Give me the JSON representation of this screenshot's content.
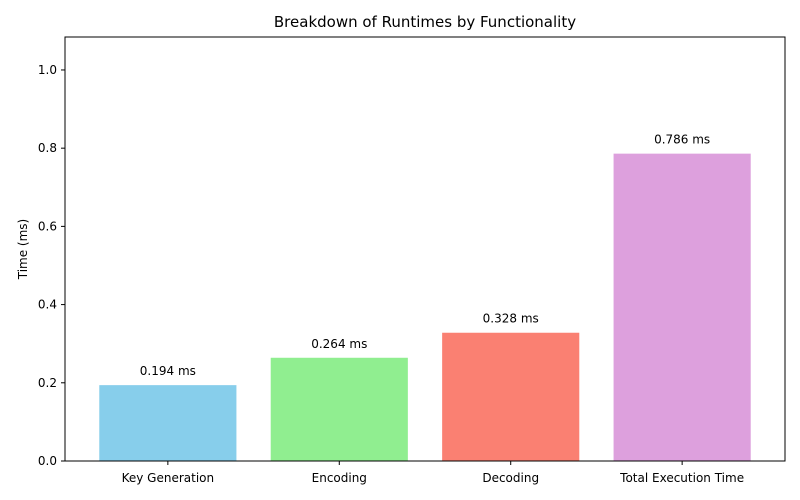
{
  "chart_data": {
    "type": "bar",
    "title": "Breakdown of Runtimes by Functionality",
    "xlabel": "",
    "ylabel": "Time (ms)",
    "ylim": [
      0,
      1.0843
    ],
    "yticks": [
      0.0,
      0.2,
      0.4,
      0.6,
      0.8,
      1.0
    ],
    "ytick_labels": [
      "0.0",
      "0.2",
      "0.4",
      "0.6",
      "0.8",
      "1.0"
    ],
    "categories": [
      "Key Generation",
      "Encoding",
      "Decoding",
      "Total Execution Time"
    ],
    "values": [
      0.194,
      0.264,
      0.328,
      0.786
    ],
    "data_labels": [
      "0.194 ms",
      "0.264 ms",
      "0.328 ms",
      "0.786 ms"
    ],
    "colors": [
      "#87ceeb",
      "#90ee90",
      "#fa8072",
      "#dda0dd"
    ],
    "grid": false,
    "legend": "none"
  }
}
